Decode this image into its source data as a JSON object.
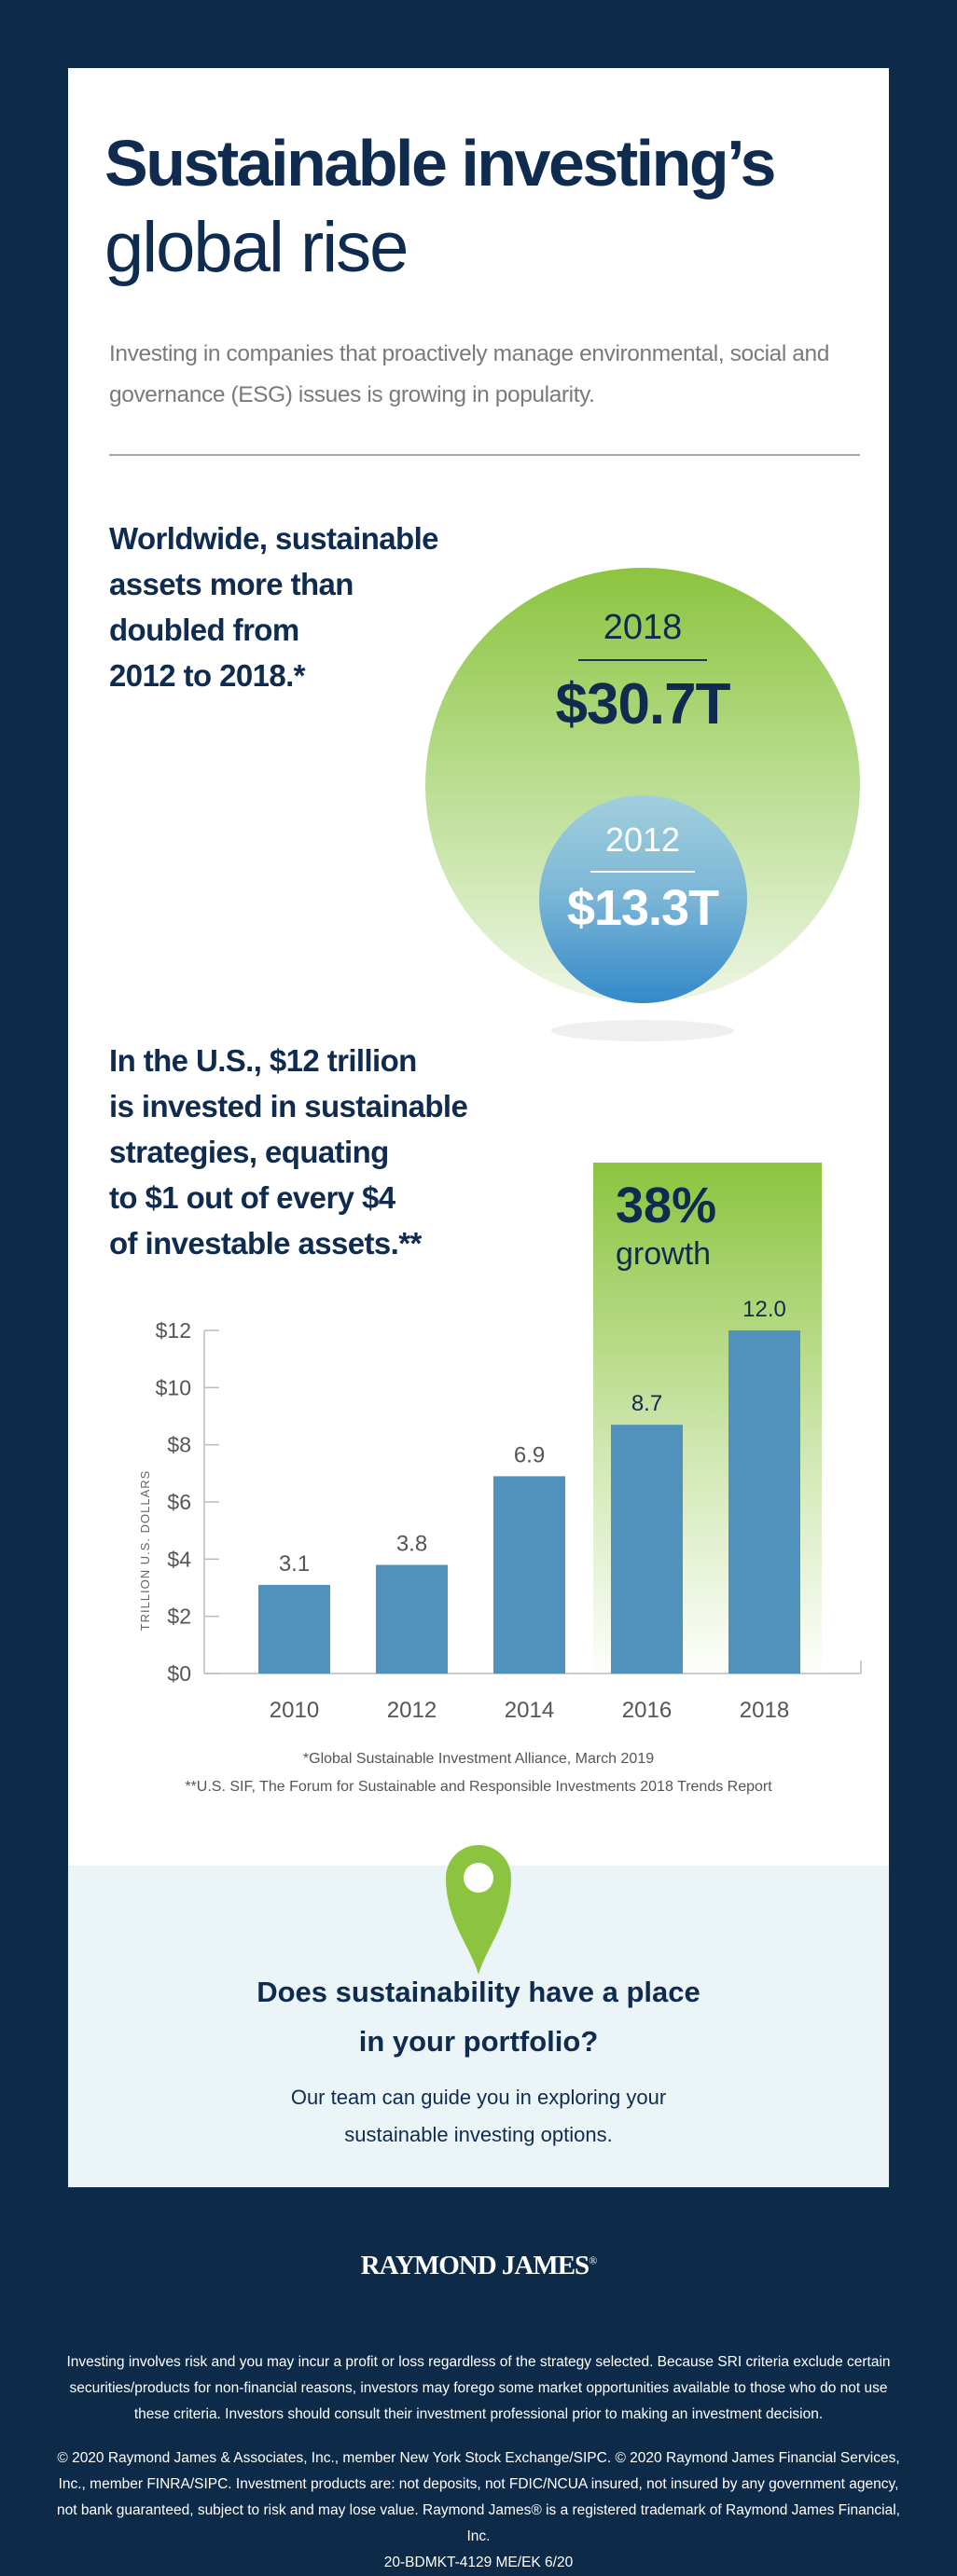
{
  "title": {
    "line1": "Sustainable investing’s",
    "line2": "global rise"
  },
  "subtitle": "Investing in companies that proactively manage environmental, social and governance (ESG) issues is growing in popularity.",
  "global": {
    "heading": "Worldwide, sustainable\nassets more than\ndoubled from\n2012 to 2018.*",
    "big_year": "2018",
    "big_value": "$30.7T",
    "small_year": "2012",
    "small_value": "$13.3T"
  },
  "us": {
    "heading": "In the U.S., $12 trillion\nis invested in sustainable\nstrategies, equating\nto $1 out of every $4\nof investable assets.**",
    "growth_pct": "38%",
    "growth_label": "growth"
  },
  "chart_data": {
    "type": "bar",
    "categories": [
      "2010",
      "2012",
      "2014",
      "2016",
      "2018"
    ],
    "values": [
      3.1,
      3.8,
      6.9,
      8.7,
      12.0
    ],
    "value_labels": [
      "3.1",
      "3.8",
      "6.9",
      "8.7",
      "12.0"
    ],
    "ylabel": "TRILLION U.S. DOLLARS",
    "ylim": [
      0,
      12
    ],
    "yticks": [
      "$0",
      "$2",
      "$4",
      "$6",
      "$8",
      "$10",
      "$12"
    ],
    "highlight": [
      "2016",
      "2018"
    ],
    "colors": {
      "bar": "#5192bd",
      "highlight": "#8cc43f"
    }
  },
  "footnotes": [
    "*Global Sustainable Investment Alliance, March 2019",
    "**U.S. SIF, The Forum for Sustainable and Responsible Investments 2018 Trends Report"
  ],
  "cta": {
    "heading_line1": "Does sustainability have a place",
    "heading_line2": "in your portfolio?",
    "body_line1": "Our team can guide you in exploring your",
    "body_line2": "sustainable investing options."
  },
  "footer": {
    "logo": "RAYMOND JAMES",
    "logo_mark": "®",
    "disclaimer": "Investing involves risk and you may incur a profit or loss regardless of the strategy selected. Because SRI criteria exclude certain securities/products for non-financial reasons, investors may forego some market opportunities available to those who do not use these criteria.  Investors should consult their investment professional prior to making an investment decision.",
    "legal": "© 2020 Raymond James & Associates, Inc., member New York Stock Exchange/SIPC. © 2020 Raymond James Financial Services, Inc., member FINRA/SIPC. Investment products are: not deposits, not FDIC/NCUA insured, not insured by any government agency, not bank guaranteed, subject to risk and may lose value. Raymond James® is a registered trademark of Raymond James Financial, Inc.",
    "code": "20-BDMKT-4129 ME/EK 6/20"
  }
}
